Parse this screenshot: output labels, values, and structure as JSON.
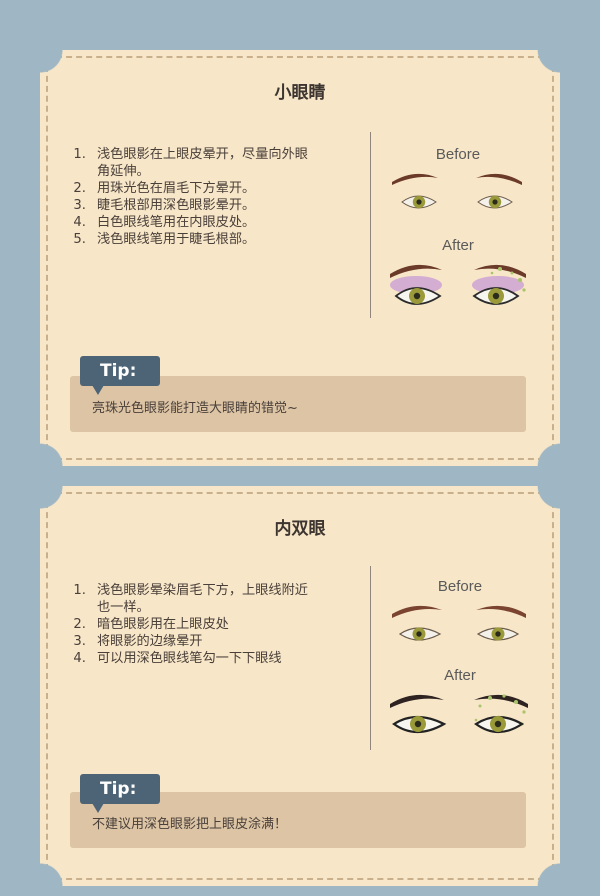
{
  "sections": [
    {
      "title": "小眼睛",
      "steps": [
        {
          "num": "1.",
          "lines": [
            "浅色眼影在上眼皮晕开，尽量向外眼",
            "角延伸。"
          ]
        },
        {
          "num": "2.",
          "lines": [
            "用珠光色在眉毛下方晕开。"
          ]
        },
        {
          "num": "3.",
          "lines": [
            "睫毛根部用深色眼影晕开。"
          ]
        },
        {
          "num": "4.",
          "lines": [
            "白色眼线笔用在内眼皮处。"
          ]
        },
        {
          "num": "5.",
          "lines": [
            "浅色眼线笔用于睫毛根部。"
          ]
        }
      ],
      "before_label": "Before",
      "after_label": "After",
      "tip_label": "Tip:",
      "tip_text": "亮珠光色眼影能打造大眼睛的错觉~"
    },
    {
      "title": "内双眼",
      "steps": [
        {
          "num": "1.",
          "lines": [
            "浅色眼影晕染眉毛下方，上眼线附近",
            "也一样。"
          ]
        },
        {
          "num": "2.",
          "lines": [
            "暗色眼影用在上眼皮处"
          ]
        },
        {
          "num": "3.",
          "lines": [
            "将眼影的边缘晕开"
          ]
        },
        {
          "num": "4.",
          "lines": [
            "可以用深色眼线笔勾一下下眼线"
          ]
        }
      ],
      "before_label": "Before",
      "after_label": "After",
      "tip_label": "Tip:",
      "tip_text": "不建议用深色眼影把上眼皮涂满！"
    }
  ],
  "colors": {
    "background": "#9fb7c4",
    "card": "#f7e6c8",
    "dashed_border": "#c9b08c",
    "tip_label_bg": "#4d6477",
    "tip_box_bg": "#dcc4a5",
    "eyebrow": "#6b3a28",
    "iris": "#9a9a3a",
    "eyeshadow_purple": "#c79ad6",
    "sparkle_green": "#a9c46a"
  },
  "icons": [
    "eyebrow-icon",
    "eye-icon",
    "eyeshadow-icon",
    "sparkle-icon"
  ]
}
